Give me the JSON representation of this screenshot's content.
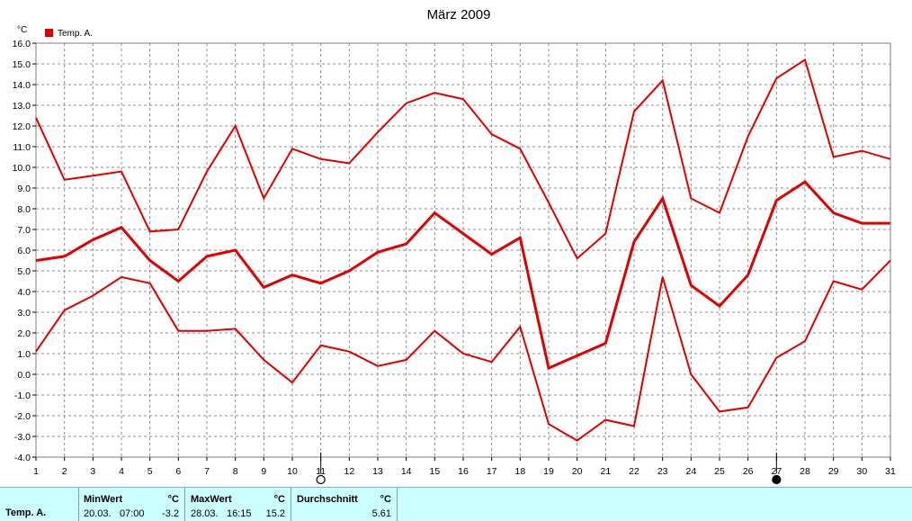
{
  "chart_data": {
    "type": "line",
    "title": "März 2009",
    "y_unit": "°C",
    "legend": [
      {
        "name": "Temp. A.",
        "color": "#e00000"
      }
    ],
    "legend_position": "top-left",
    "grid": true,
    "xlim": [
      1,
      31
    ],
    "ylim": [
      -4.0,
      16.0
    ],
    "x_ticks": [
      1,
      2,
      3,
      4,
      5,
      6,
      7,
      8,
      9,
      10,
      11,
      12,
      13,
      14,
      15,
      16,
      17,
      18,
      19,
      20,
      21,
      22,
      23,
      24,
      25,
      26,
      27,
      28,
      29,
      30,
      31
    ],
    "y_ticks": [
      "16.0",
      "15.0",
      "14.0",
      "13.0",
      "12.0",
      "11.0",
      "10.0",
      "9.0",
      "8.0",
      "7.0",
      "6.0",
      "5.0",
      "4.0",
      "3.0",
      "2.0",
      "1.0",
      "0.0",
      "-1.0",
      "-2.0",
      "-3.0",
      "-4.0"
    ],
    "x": [
      1,
      2,
      3,
      4,
      5,
      6,
      7,
      8,
      9,
      10,
      11,
      12,
      13,
      14,
      15,
      16,
      17,
      18,
      19,
      20,
      21,
      22,
      23,
      24,
      25,
      26,
      27,
      28,
      29,
      30,
      31
    ],
    "series": [
      {
        "role": "max",
        "values": [
          12.4,
          9.4,
          9.6,
          9.8,
          6.9,
          7.0,
          9.8,
          12.0,
          8.5,
          10.9,
          10.4,
          10.2,
          11.7,
          13.1,
          13.6,
          13.3,
          11.6,
          10.9,
          8.3,
          5.6,
          6.8,
          12.7,
          14.2,
          8.5,
          7.8,
          11.5,
          14.3,
          15.2,
          10.5,
          10.8,
          10.4
        ]
      },
      {
        "role": "avg",
        "values": [
          5.5,
          5.7,
          6.5,
          7.1,
          5.5,
          4.5,
          5.7,
          6.0,
          4.2,
          4.8,
          4.4,
          5.0,
          5.9,
          6.3,
          7.8,
          6.8,
          5.8,
          6.6,
          0.3,
          0.9,
          1.5,
          6.4,
          8.5,
          4.3,
          3.3,
          4.8,
          8.4,
          9.3,
          7.8,
          7.3,
          7.3
        ]
      },
      {
        "role": "min",
        "values": [
          1.1,
          3.1,
          3.8,
          4.7,
          4.4,
          2.1,
          2.1,
          2.2,
          0.7,
          -0.4,
          1.4,
          1.1,
          0.4,
          0.7,
          2.1,
          1.0,
          0.6,
          2.3,
          -2.4,
          -3.2,
          -2.2,
          -2.5,
          4.7,
          0.0,
          -1.8,
          -1.6,
          0.8,
          1.6,
          4.5,
          4.1,
          5.5
        ]
      }
    ],
    "moon_markers": [
      {
        "day": 11,
        "phase": "full"
      },
      {
        "day": 27,
        "phase": "new"
      }
    ]
  },
  "stats": {
    "series_label": "Temp. A.",
    "min": {
      "label": "MinWert",
      "unit": "°C",
      "date": "20.03.",
      "time": "07:00",
      "value": "-3.2"
    },
    "max": {
      "label": "MaxWert",
      "unit": "°C",
      "date": "28.03.",
      "time": "16:15",
      "value": "15.2"
    },
    "avg": {
      "label": "Durchschnitt",
      "unit": "°C",
      "value": "5.61"
    }
  }
}
